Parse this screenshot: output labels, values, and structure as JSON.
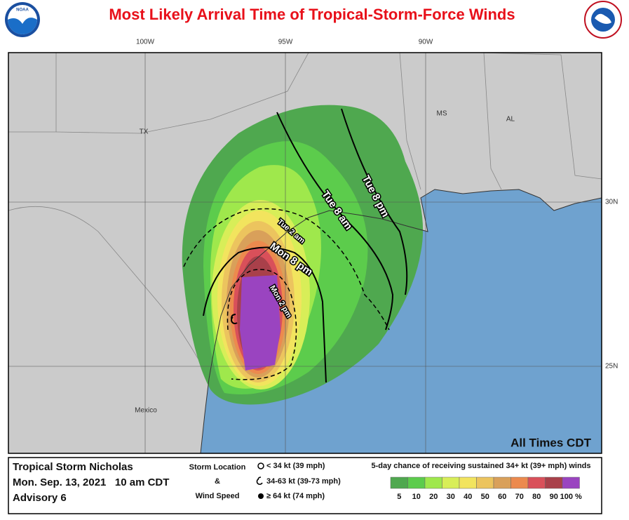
{
  "header": {
    "title": "Most Likely Arrival Time of Tropical-Storm-Force Winds",
    "logo_text": "NOAA"
  },
  "map": {
    "longitude_labels": [
      "100W",
      "95W",
      "90W"
    ],
    "latitude_labels": [
      "30N",
      "25N"
    ],
    "region_labels": [
      "TX",
      "MS",
      "AL",
      "Mexico"
    ],
    "arrival_labels": [
      "Tue 8 pm",
      "Tue 8 am",
      "Tue 2 am",
      "Mon 8 pm",
      "Mon 2 pm"
    ],
    "time_note": "All Times CDT"
  },
  "legend": {
    "storm_name": "Tropical Storm Nicholas",
    "issued": "Mon. Sep. 13, 2021   10 am CDT",
    "advisory": "Advisory 6",
    "symbol_heading": [
      "Storm Location",
      "&",
      "Wind Speed"
    ],
    "symbols": [
      "< 34 kt (39 mph)",
      "34-63 kt (39-73 mph)",
      "≥ 64 kt (74 mph)"
    ],
    "scale_title": "5-day chance of receiving sustained 34+ kt (39+ mph) winds",
    "scale_labels": [
      "5",
      "10",
      "20",
      "30",
      "40",
      "50",
      "60",
      "70",
      "80",
      "90",
      "100 %"
    ],
    "scale_colors": [
      "#4fa84f",
      "#5ccc4c",
      "#9fe84c",
      "#d8ee58",
      "#f2e45e",
      "#ecc45e",
      "#d9a05a",
      "#ec8a4e",
      "#d9505a",
      "#a9404a"
    ],
    "top_color": "#9a44c0"
  }
}
